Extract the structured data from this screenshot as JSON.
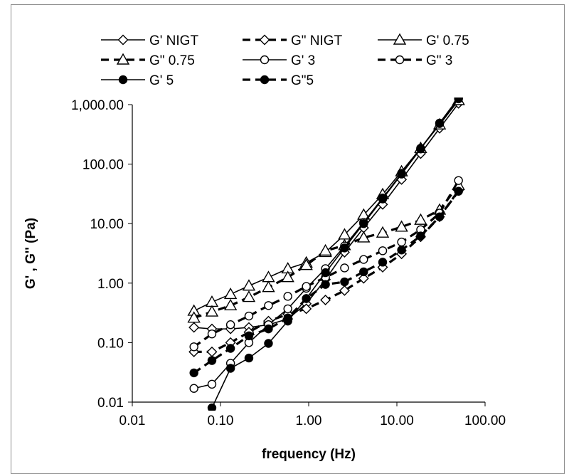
{
  "chart_data": {
    "type": "line",
    "title": "",
    "xlabel": "frequency (Hz)",
    "ylabel": "G' , G'' (Pa)",
    "x_scale": "log",
    "y_scale": "log",
    "xlim": [
      0.01,
      100
    ],
    "ylim": [
      0.01,
      1000
    ],
    "x_tick_labels": [
      "0.01",
      "0.10",
      "1.00",
      "10.00",
      "100.00"
    ],
    "y_tick_labels": [
      "0.01",
      "0.10",
      "1.00",
      "10.00",
      "100.00",
      "1,000.00"
    ],
    "grid": false,
    "legend_position": "top",
    "x": [
      0.05,
      0.08,
      0.13,
      0.21,
      0.35,
      0.58,
      0.94,
      1.55,
      2.55,
      4.2,
      6.9,
      11.3,
      18.6,
      30.5,
      50
    ],
    "series": [
      {
        "name": "G' NIGT",
        "line": "solid",
        "marker": "diamond-open",
        "values": [
          0.18,
          0.17,
          0.17,
          0.18,
          0.2,
          0.25,
          0.45,
          1.15,
          3.3,
          8.5,
          21,
          55,
          150,
          400,
          1050
        ]
      },
      {
        "name": "G\" NIGT",
        "line": "dashed",
        "marker": "diamond-open",
        "values": [
          0.07,
          0.07,
          0.1,
          0.15,
          0.23,
          0.3,
          0.37,
          0.52,
          0.75,
          1.2,
          1.85,
          3.1,
          6,
          13,
          36
        ]
      },
      {
        "name": "G' 0.75",
        "line": "solid",
        "marker": "triangle-open",
        "values": [
          0.34,
          0.48,
          0.65,
          0.9,
          1.25,
          1.75,
          2.2,
          3.3,
          6.5,
          14,
          31,
          75,
          185,
          460,
          1180
        ]
      },
      {
        "name": "G\" 0.75",
        "line": "dashed",
        "marker": "triangle-open",
        "values": [
          0.26,
          0.33,
          0.42,
          0.58,
          0.85,
          1.25,
          2.0,
          3.5,
          4.3,
          5.8,
          7.0,
          8.8,
          11.5,
          17,
          44
        ]
      },
      {
        "name": "G' 3",
        "line": "solid",
        "marker": "circle-open",
        "values": [
          0.017,
          0.02,
          0.045,
          0.1,
          0.2,
          0.37,
          0.82,
          1.75,
          4.2,
          10.5,
          27,
          70,
          185,
          480,
          1250
        ]
      },
      {
        "name": "G\" 3",
        "line": "dashed",
        "marker": "circle-open",
        "values": [
          0.085,
          0.14,
          0.2,
          0.28,
          0.42,
          0.6,
          0.88,
          1.25,
          1.8,
          2.5,
          3.5,
          4.9,
          7.9,
          15,
          53
        ]
      },
      {
        "name": "G' 5",
        "line": "solid",
        "marker": "circle-filled",
        "values": [
          0.003,
          0.008,
          0.037,
          0.055,
          0.097,
          0.23,
          0.55,
          1.5,
          3.9,
          10,
          26,
          68,
          180,
          490,
          1300
        ]
      },
      {
        "name": "G\"5",
        "line": "dashed",
        "marker": "circle-filled",
        "values": [
          0.031,
          0.05,
          0.08,
          0.13,
          0.17,
          0.26,
          0.55,
          0.95,
          1.05,
          1.55,
          2.25,
          3.6,
          6.2,
          13,
          35
        ]
      }
    ]
  }
}
